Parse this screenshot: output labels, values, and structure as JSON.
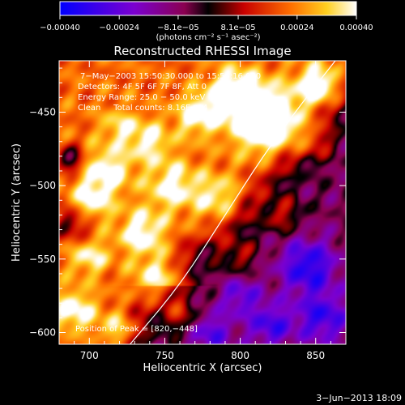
{
  "chart_data": {
    "type": "heatmap",
    "title": "Reconstructed RHESSI Image",
    "xlabel": "Heliocentric X (arcsec)",
    "ylabel": "Heliocentric Y (arcsec)",
    "xlim": [
      680,
      870
    ],
    "ylim": [
      -608,
      -415
    ],
    "xticks": [
      700,
      750,
      800,
      850
    ],
    "yticks": [
      -450,
      -500,
      -550,
      -600
    ],
    "xtick_labels": [
      "700",
      "750",
      "800",
      "850"
    ],
    "ytick_labels": [
      "−450",
      "−500",
      "−550",
      "−600"
    ],
    "colorbar": {
      "min": -0.0004,
      "max": 0.0004,
      "tick_values": [
        -0.0004,
        -0.00024,
        -8.1e-05,
        8.1e-05,
        0.00024,
        0.0004
      ],
      "tick_labels": [
        "−0.00040",
        "−0.00024",
        "−8.1e−05",
        "8.1e−05",
        "0.00024",
        "0.00040"
      ],
      "units": "(photons cm⁻² s⁻¹ asec⁻²)"
    },
    "annotations": [
      "7−May−2003 15:50:30.000 to 15:56:16.000",
      "Detectors: 4F 5F 6F 7F 8F, Att 0",
      "Energy Range: 25.0 − 50.0 keV",
      "Clean     Total counts: 8.16E+04"
    ],
    "peak_label": "Position of Peak = [820,−448]",
    "peak_position": [
      820,
      -448
    ],
    "limb": [
      [
        727,
        -608
      ],
      [
        760,
        -568
      ],
      [
        790,
        -520
      ],
      [
        815,
        -480
      ],
      [
        840,
        -445
      ],
      [
        863,
        -415
      ]
    ],
    "hotspots": [
      {
        "x": 817,
        "y": -455,
        "amp": 1.0,
        "r": 15
      },
      {
        "x": 796,
        "y": -437,
        "amp": 0.72,
        "r": 11
      },
      {
        "x": 852,
        "y": -432,
        "amp": 0.7,
        "r": 10
      },
      {
        "x": 772,
        "y": -452,
        "amp": 0.55,
        "r": 10
      },
      {
        "x": 755,
        "y": -500,
        "amp": 0.5,
        "r": 12
      },
      {
        "x": 785,
        "y": -508,
        "amp": 0.45,
        "r": 11
      },
      {
        "x": 712,
        "y": -490,
        "amp": 0.55,
        "r": 11
      },
      {
        "x": 700,
        "y": -512,
        "amp": 0.55,
        "r": 10
      },
      {
        "x": 735,
        "y": -532,
        "amp": 0.55,
        "r": 11
      },
      {
        "x": 700,
        "y": -548,
        "amp": 0.45,
        "r": 9
      },
      {
        "x": 745,
        "y": -565,
        "amp": 0.5,
        "r": 11
      },
      {
        "x": 690,
        "y": -585,
        "amp": 0.55,
        "r": 10
      },
      {
        "x": 720,
        "y": -600,
        "amp": 0.6,
        "r": 10
      },
      {
        "x": 760,
        "y": -588,
        "amp": 0.45,
        "r": 9
      },
      {
        "x": 800,
        "y": -548,
        "amp": 0.35,
        "r": 8
      },
      {
        "x": 828,
        "y": -520,
        "amp": 0.4,
        "r": 9
      },
      {
        "x": 740,
        "y": -470,
        "amp": 0.45,
        "r": 10
      },
      {
        "x": 850,
        "y": -470,
        "amp": 0.4,
        "r": 9
      },
      {
        "x": 720,
        "y": -460,
        "amp": 0.35,
        "r": 9
      },
      {
        "x": 690,
        "y": -525,
        "amp": -0.55,
        "r": 9
      },
      {
        "x": 687,
        "y": -482,
        "amp": -0.7,
        "r": 6
      },
      {
        "x": 845,
        "y": -555,
        "amp": -0.7,
        "r": 13
      },
      {
        "x": 855,
        "y": -590,
        "amp": -0.6,
        "r": 12
      },
      {
        "x": 820,
        "y": -595,
        "amp": -0.55,
        "r": 11
      },
      {
        "x": 800,
        "y": -575,
        "amp": -0.45,
        "r": 9
      },
      {
        "x": 770,
        "y": -548,
        "amp": -0.3,
        "r": 8
      },
      {
        "x": 780,
        "y": -600,
        "amp": -0.5,
        "r": 10
      }
    ],
    "grid": false
  },
  "footer": {
    "date": "3−Jun−2013 18:09"
  }
}
